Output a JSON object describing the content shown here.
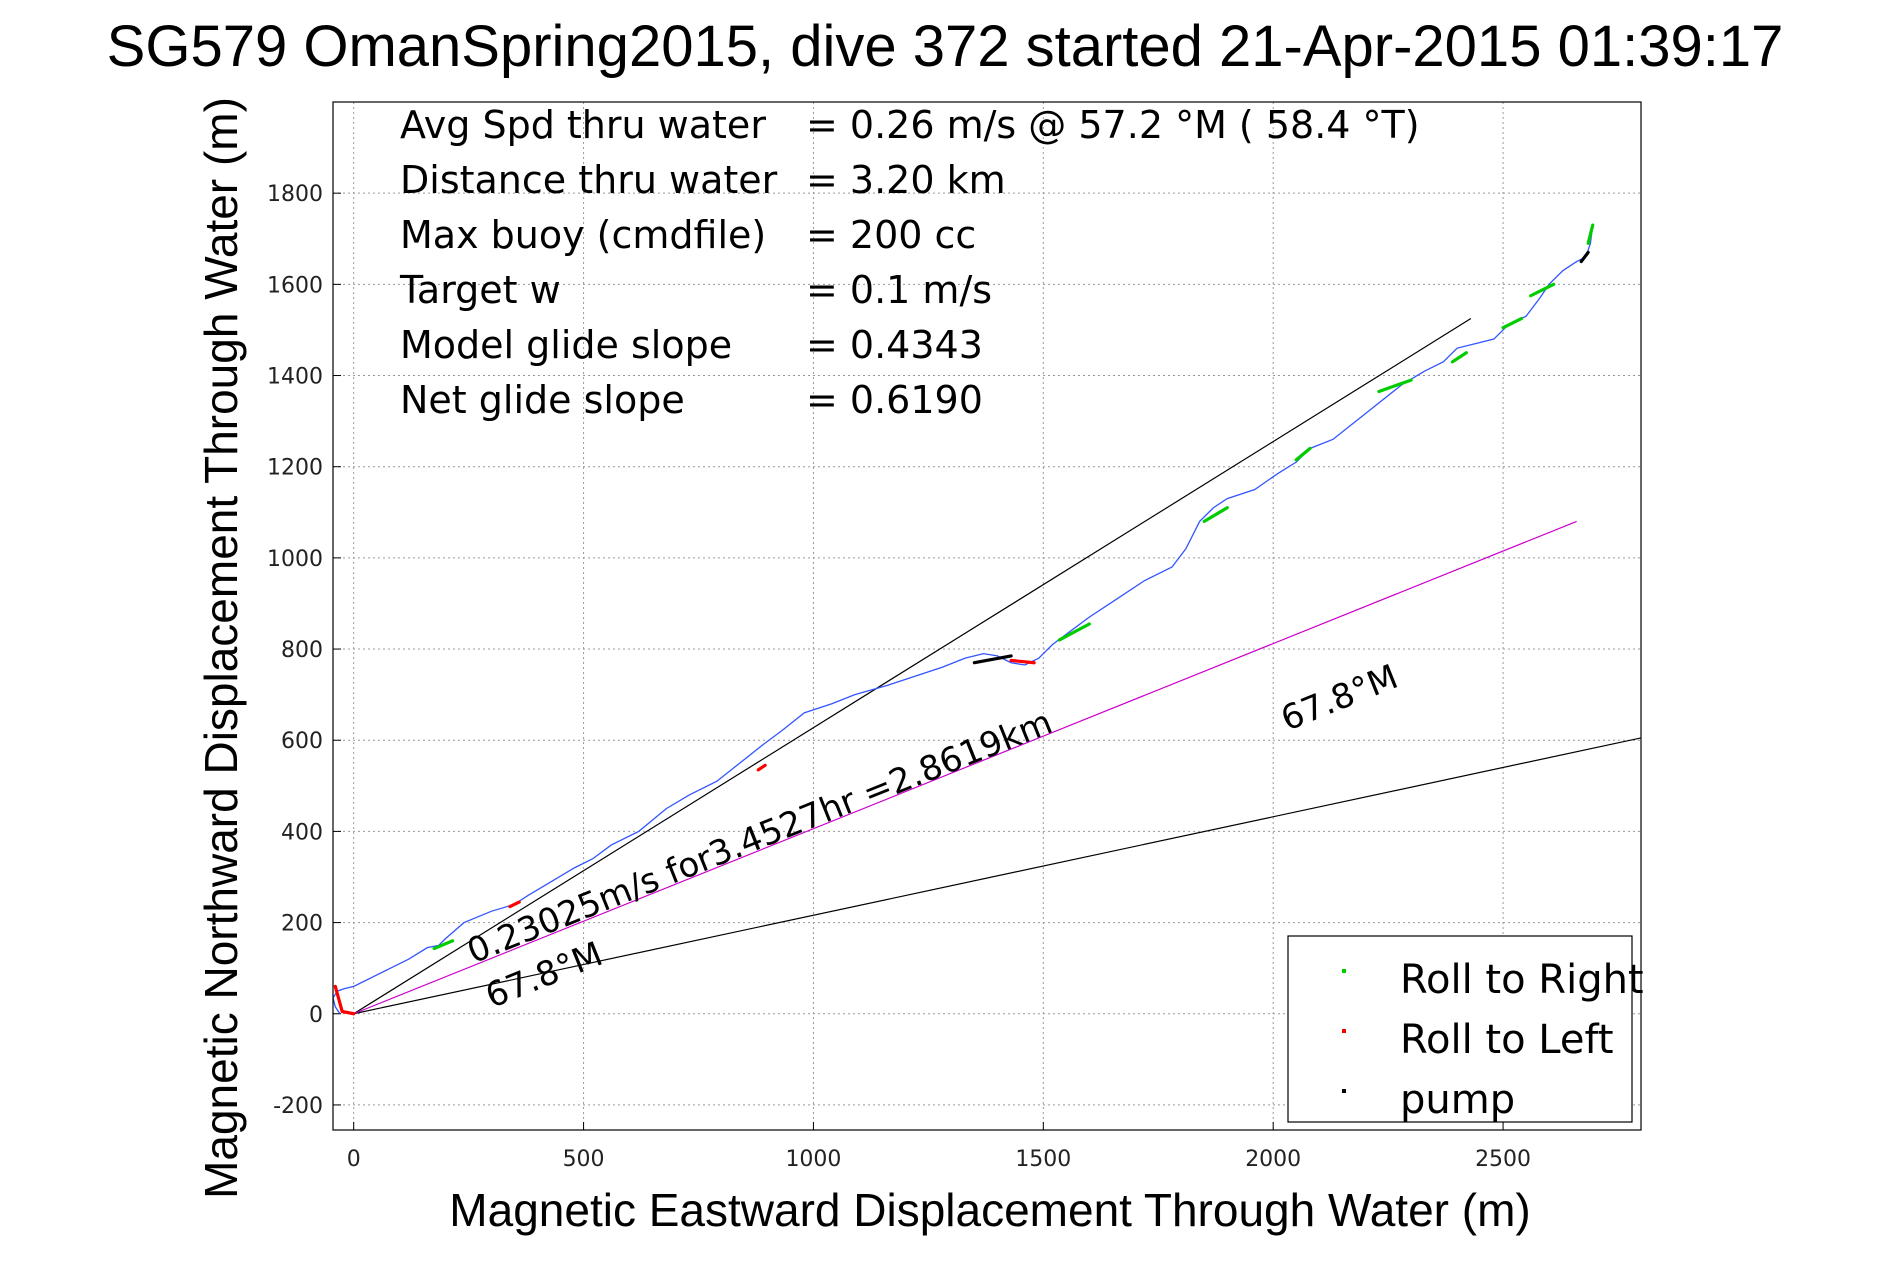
{
  "chart_data": {
    "type": "line",
    "title": "SG579 OmanSpring2015, dive 372 started 21-Apr-2015 01:39:17",
    "xlabel": "Magnetic Eastward Displacement Through Water (m)",
    "ylabel": "Magnetic Northward Displacement Through Water (m)",
    "xlim": [
      -45,
      2800
    ],
    "ylim": [
      -255,
      2000
    ],
    "xticks": [
      0,
      500,
      1000,
      1500,
      2000,
      2500
    ],
    "yticks": [
      -200,
      0,
      200,
      400,
      600,
      800,
      1000,
      1200,
      1400,
      1600,
      1800
    ],
    "grid": true,
    "info": [
      {
        "label": "Avg Spd thru water",
        "value": "=  0.26 m/s @  57.2 °M ( 58.4 °T)"
      },
      {
        "label": "Distance thru water",
        "value": "=  3.20 km"
      },
      {
        "label": "Max buoy (cmdfile)",
        "value": "= 200 cc"
      },
      {
        "label": "Target w",
        "value": "= 0.1 m/s"
      },
      {
        "label": "Model glide slope",
        "value": "= 0.4343"
      },
      {
        "label": "Net glide slope",
        "value": "= 0.6190"
      }
    ],
    "track": {
      "color": "#3355ff",
      "x": [
        -30,
        -40,
        -45,
        -35,
        -20,
        0,
        10,
        40,
        80,
        120,
        160,
        185,
        200,
        240,
        300,
        350,
        380,
        430,
        480,
        520,
        560,
        620,
        680,
        730,
        790,
        840,
        890,
        930,
        980,
        1040,
        1090,
        1160,
        1220,
        1280,
        1330,
        1370,
        1400,
        1430,
        1460,
        1490,
        1520,
        1560,
        1600,
        1660,
        1720,
        1780,
        1810,
        1840,
        1870,
        1900,
        1960,
        2010,
        2050,
        2080,
        2130,
        2180,
        2230,
        2280,
        2330,
        2370,
        2400,
        2440,
        2480,
        2510,
        2550,
        2580,
        2600,
        2630,
        2660,
        2680,
        2690,
        2695
      ],
      "y": [
        0,
        15,
        35,
        50,
        55,
        60,
        65,
        80,
        100,
        120,
        145,
        150,
        165,
        200,
        225,
        240,
        260,
        290,
        320,
        340,
        370,
        400,
        450,
        480,
        510,
        550,
        590,
        620,
        660,
        680,
        700,
        720,
        740,
        760,
        780,
        790,
        785,
        770,
        765,
        780,
        810,
        840,
        870,
        910,
        950,
        980,
        1020,
        1080,
        1110,
        1130,
        1150,
        1185,
        1210,
        1240,
        1260,
        1300,
        1340,
        1380,
        1410,
        1430,
        1460,
        1470,
        1480,
        1510,
        1530,
        1570,
        1600,
        1630,
        1650,
        1660,
        1690,
        1730
      ]
    },
    "roll_right_segments": [
      {
        "x": [
          175,
          215
        ],
        "y": [
          143,
          160
        ]
      },
      {
        "x": [
          1535,
          1600
        ],
        "y": [
          820,
          855
        ]
      },
      {
        "x": [
          1850,
          1900
        ],
        "y": [
          1080,
          1110
        ]
      },
      {
        "x": [
          2050,
          2080
        ],
        "y": [
          1215,
          1240
        ]
      },
      {
        "x": [
          2230,
          2300
        ],
        "y": [
          1365,
          1390
        ]
      },
      {
        "x": [
          2390,
          2420
        ],
        "y": [
          1430,
          1450
        ]
      },
      {
        "x": [
          2500,
          2540
        ],
        "y": [
          1505,
          1525
        ]
      },
      {
        "x": [
          2560,
          2610
        ],
        "y": [
          1575,
          1600
        ]
      },
      {
        "x": [
          2685,
          2695
        ],
        "y": [
          1690,
          1730
        ]
      }
    ],
    "roll_left_segments": [
      {
        "x": [
          -40,
          -25,
          0
        ],
        "y": [
          60,
          5,
          0
        ]
      },
      {
        "x": [
          340,
          360
        ],
        "y": [
          235,
          245
        ]
      },
      {
        "x": [
          880,
          895
        ],
        "y": [
          535,
          545
        ]
      },
      {
        "x": [
          1430,
          1480
        ],
        "y": [
          775,
          770
        ]
      }
    ],
    "pump_segments": [
      {
        "x": [
          1350,
          1430
        ],
        "y": [
          770,
          785
        ]
      },
      {
        "x": [
          2670,
          2685
        ],
        "y": [
          1650,
          1670
        ]
      }
    ],
    "lines": [
      {
        "name": "upper",
        "color": "#000000",
        "x": [
          0,
          2430
        ],
        "y": [
          0,
          1525
        ]
      },
      {
        "name": "lower",
        "color": "#000000",
        "x": [
          0,
          2800
        ],
        "y": [
          0,
          605
        ]
      },
      {
        "name": "net",
        "color": "#cc00cc",
        "x": [
          0,
          2660
        ],
        "y": [
          0,
          1080
        ]
      }
    ],
    "annotations": [
      {
        "text": "0.23025m/s for3.4527hr =2.8619km",
        "x": 260,
        "y": 110,
        "angle": -21.8
      },
      {
        "text": "67.8°M",
        "x": 300,
        "y": 12,
        "angle": -21.8
      },
      {
        "text": "67.8°M",
        "x": 2030,
        "y": 620,
        "angle": -21.8
      }
    ],
    "legend": {
      "position": "bottom-right",
      "entries": [
        {
          "label": "Roll to Right",
          "color": "#00cc00"
        },
        {
          "label": "Roll to Left",
          "color": "#ff0000"
        },
        {
          "label": "pump",
          "color": "#000000"
        }
      ]
    }
  }
}
